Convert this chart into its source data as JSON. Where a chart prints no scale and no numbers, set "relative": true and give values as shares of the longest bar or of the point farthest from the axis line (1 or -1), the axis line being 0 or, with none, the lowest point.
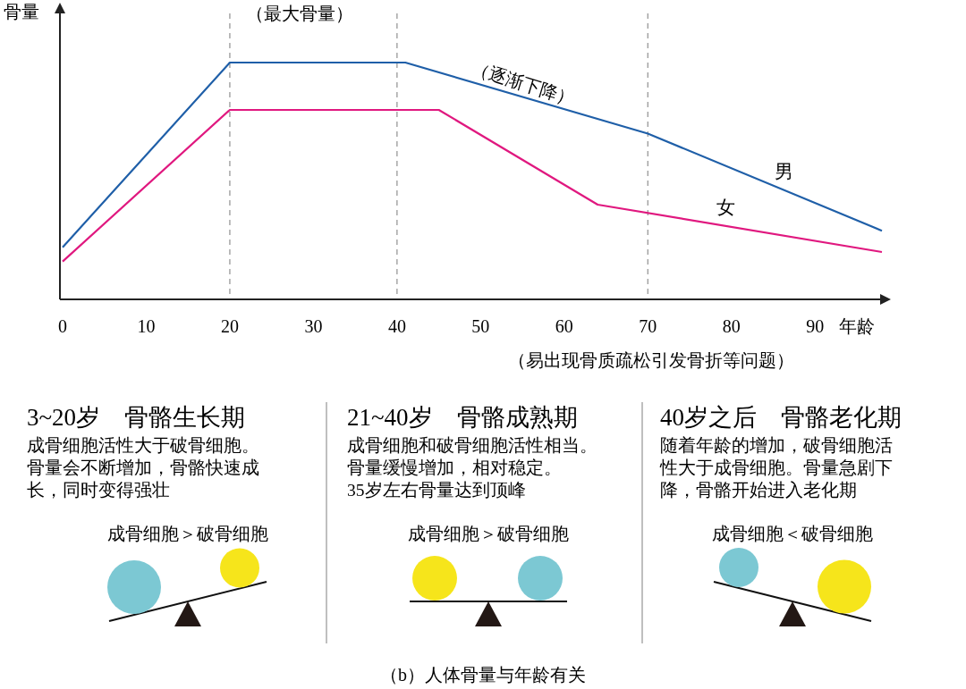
{
  "chart_data": [
    {
      "type": "line",
      "ylabel": "骨量",
      "xlabel": "年龄",
      "relative": true,
      "xlim": [
        0,
        98
      ],
      "xticks": [
        0,
        10,
        20,
        30,
        40,
        50,
        60,
        70,
        80,
        90
      ],
      "line_style": "solid",
      "series": [
        {
          "name": "男",
          "color": "#1f5fa8",
          "x": [
            0,
            20,
            41,
            70,
            98
          ],
          "values": [
            0.22,
            1,
            1,
            0.7,
            0.29
          ]
        },
        {
          "name": "女",
          "color": "#e0187f",
          "x": [
            0,
            20,
            45,
            64,
            98
          ],
          "values": [
            0.16,
            0.8,
            0.8,
            0.4,
            0.2
          ]
        }
      ],
      "ref_lines": [
        {
          "axis": "x",
          "value": 20,
          "color": "#999999",
          "line_style": "dashed"
        },
        {
          "axis": "x",
          "value": 40,
          "color": "#999999",
          "line_style": "dashed"
        },
        {
          "axis": "x",
          "value": 70,
          "color": "#999999",
          "line_style": "dashed"
        }
      ],
      "annotations": [
        "（最大骨量）",
        "（逐渐下降）",
        "（易出现骨质疏松引发骨折等问题）",
        "（b）人体骨量与年龄有关"
      ]
    },
    {
      "type": "other",
      "title": "3~20岁　骨骼生长期",
      "annotations": [
        "成骨细胞活性大于破骨细胞。",
        "骨量会不断增加，骨骼快速成",
        "长，同时变得强壮",
        "成骨细胞＞破骨细胞"
      ]
    },
    {
      "type": "other",
      "title": "21~40岁　骨骼成熟期",
      "annotations": [
        "成骨细胞和破骨细胞活性相当。",
        "骨量缓慢增加，相对稳定。",
        "35岁左右骨量达到顶峰",
        "成骨细胞＞破骨细胞"
      ]
    },
    {
      "type": "other",
      "title": "40岁之后　骨骼老化期",
      "annotations": [
        "随着年龄的增加，破骨细胞活",
        "性大于成骨细胞。骨量急剧下",
        "降，骨骼开始进入老化期",
        "成骨细胞＜破骨细胞"
      ]
    }
  ]
}
